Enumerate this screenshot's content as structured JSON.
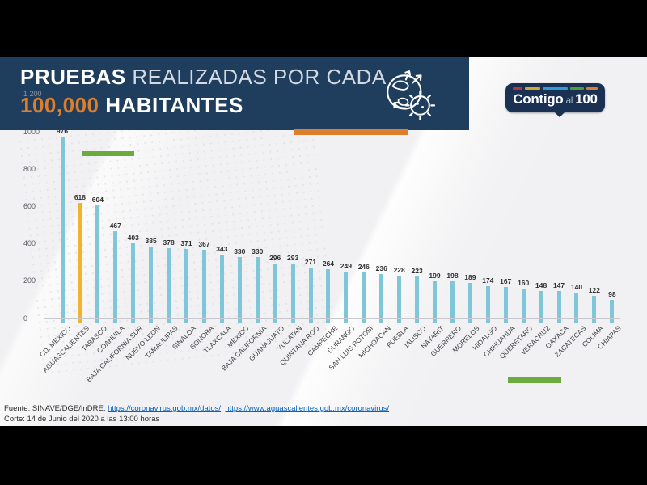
{
  "banner": {
    "title_strong": "PRUEBAS",
    "title_rest": " REALIZADAS POR CADA",
    "subtitle_accent": "100,000",
    "subtitle_rest": " HABITANTES",
    "icon": "globe-virus-icon"
  },
  "logo": {
    "word_main": "Contigo",
    "word_mid": "al",
    "word_num": "100",
    "stripe_colors": [
      "#a83c3c",
      "#d4a82a",
      "#2e9bd6",
      "#4a9e3f",
      "#d97e2a"
    ],
    "stripe_widths": [
      14,
      22,
      36,
      20,
      16
    ]
  },
  "colors": {
    "banner_navy": "#1f3e5e",
    "logo_navy": "#1a3154",
    "accent_orange": "#dd7e2b",
    "bar_blue": "#7fc6d8",
    "bar_gold": "#f1b42c",
    "accent_green": "#6baa3c",
    "link_blue": "#0563c1"
  },
  "chart_data": {
    "type": "bar",
    "title": "PRUEBAS REALIZADAS POR CADA 100,000 HABITANTES",
    "xlabel": "",
    "ylabel": "",
    "ylim": [
      0,
      1200
    ],
    "grid": false,
    "legend": null,
    "highlight": {
      "index": 1,
      "category": "AGUASCALIENTES",
      "color": "#f1b42c"
    },
    "categories": [
      "CD. MEXICO",
      "AGUASCALIENTES",
      "TABASCO",
      "COAHUILA",
      "BAJA CALIFORNIA SUR",
      "NUEVO LEON",
      "TAMAULIPAS",
      "SINALOA",
      "SONORA",
      "TLAXCALA",
      "MEXICO",
      "BAJA CALIFORNIA",
      "GUANAJUATO",
      "YUCATAN",
      "QUINTANA ROO",
      "CAMPECHE",
      "DURANGO",
      "SAN LUIS POTOSI",
      "MICHOACAN",
      "PUEBLA",
      "JALISCO",
      "NAYARIT",
      "GUERRERO",
      "MORELOS",
      "HIDALGO",
      "CHIHUAHUA",
      "QUERETARO",
      "VERACRUZ",
      "OAXACA",
      "ZACATECAS",
      "COLIMA",
      "CHIAPAS"
    ],
    "values": [
      976,
      618,
      604,
      467,
      403,
      385,
      378,
      371,
      367,
      343,
      330,
      330,
      296,
      293,
      271,
      264,
      249,
      246,
      236,
      228,
      223,
      199,
      198,
      189,
      174,
      167,
      160,
      148,
      147,
      140,
      122,
      98
    ],
    "yticks": [
      1200,
      1000,
      800,
      600,
      400,
      200,
      0
    ],
    "ytick_labels": [
      "1 200",
      "1000",
      "800",
      "600",
      "400",
      "200",
      "0"
    ]
  },
  "footer": {
    "source_label": "Fuente: SINAVE/DGE/InDRE. ",
    "link1": "https://coronavirus.gob.mx/datos/",
    "link1_suffix": ", ",
    "link2": "https://www.aguascalientes.gob.mx/coronavirus/",
    "cutoff_line": "Corte: 14 de Junio del 2020 a las 13:00 horas"
  }
}
